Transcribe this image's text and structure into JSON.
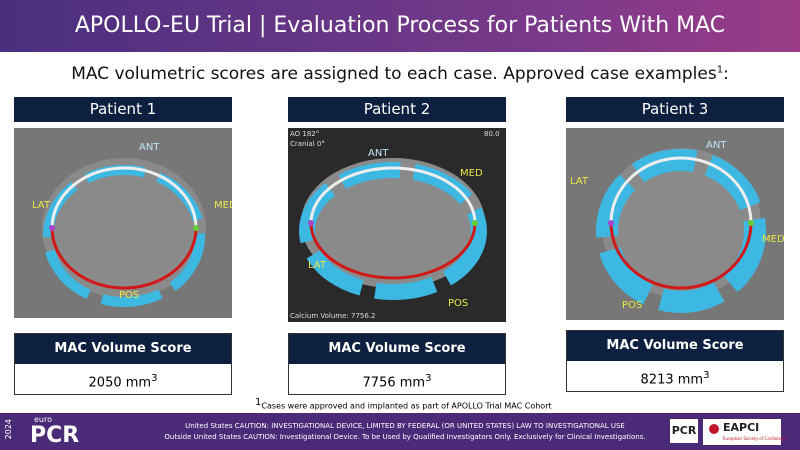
{
  "header": {
    "title": "APOLLO-EU Trial | Evaluation Process for Patients With MAC"
  },
  "subtitle": {
    "text": "MAC volumetric scores are assigned to each case. Approved case examples",
    "superscript": "1",
    "tail": ":"
  },
  "patients": [
    {
      "name": "Patient 1",
      "labels": {
        "ant": "ANT",
        "lat": "LAT",
        "med": "MED",
        "pos": "POS"
      },
      "score_label": "MAC Volume Score",
      "score": "2050 mm",
      "unit_exponent": "3"
    },
    {
      "name": "Patient 2",
      "labels": {
        "ant": "ANT",
        "lat": "LAT",
        "med": "MED",
        "pos": "POS"
      },
      "overlay": [
        "AO 182°",
        "Cranial 0°",
        "80.0",
        "Calcium Volume: 7756.2"
      ],
      "score_label": "MAC Volume Score",
      "score": "7756 mm",
      "unit_exponent": "3"
    },
    {
      "name": "Patient 3",
      "labels": {
        "ant": "ANT",
        "lat": "LAT",
        "med": "MED",
        "pos": "POS"
      },
      "score_label": "MAC Volume Score",
      "score": "8213 mm",
      "unit_exponent": "3"
    }
  ],
  "footnote": {
    "marker": "1",
    "text": "Cases were approved and implanted as part of APOLLO Trial MAC Cohort"
  },
  "footer": {
    "year": "2024",
    "brand_small": "euro",
    "brand": "PCR",
    "caution_lines": [
      "United States CAUTION: INVESTIGATIONAL DEVICE, LIMITED BY FEDERAL (OR UNITED STATES) LAW TO INVESTIGATIONAL USE",
      "Outside United States  CAUTION: Investigational Device. To be Used by Qualified Investigators Only. Exclusively for Clinical Investigations."
    ],
    "logo_pcr": "PCR",
    "logo_eapci": "EAPCI",
    "logo_eapci_sub": "European Society of Cardiology"
  }
}
